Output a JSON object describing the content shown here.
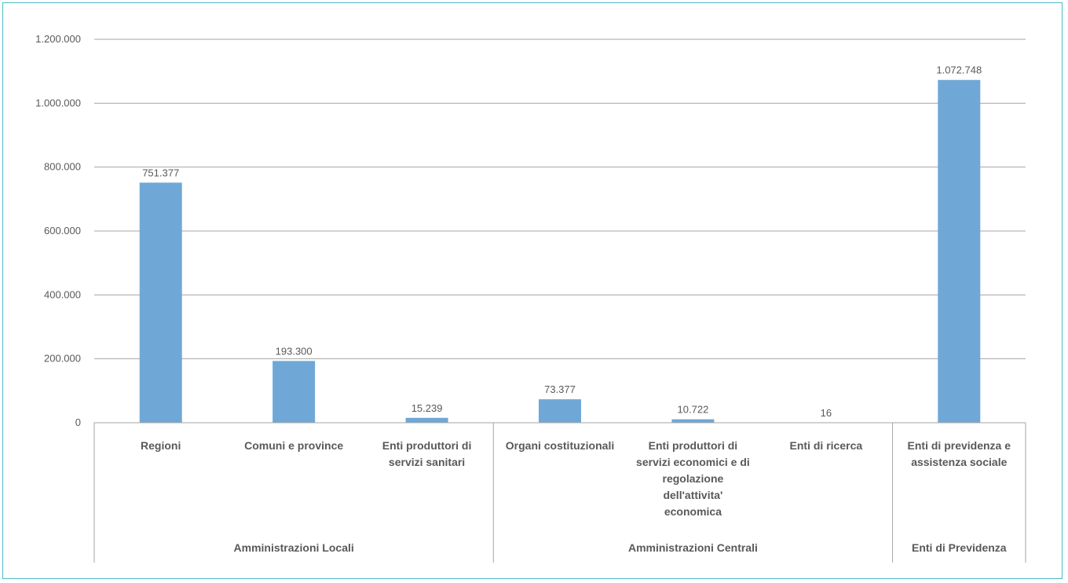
{
  "chart_data": {
    "type": "bar",
    "title": "",
    "xlabel": "",
    "ylabel": "",
    "ylim": [
      0,
      1200000
    ],
    "yticks": [
      0,
      200000,
      400000,
      600000,
      800000,
      1000000,
      1200000
    ],
    "ytick_labels": [
      "0",
      "200.000",
      "400.000",
      "600.000",
      "800.000",
      "1.000.000",
      "1.200.000"
    ],
    "grid": true,
    "legend": "none",
    "bar_color": "#6fa8d6",
    "categories": [
      "Regioni",
      "Comuni e province",
      "Enti produttori di servizi sanitari",
      "Organi costituzionali",
      "Enti produttori di servizi economici e di regolazione dell'attivita' economica",
      "Enti di ricerca",
      "Enti di previdenza e assistenza sociale"
    ],
    "category_lines": [
      [
        "Regioni"
      ],
      [
        "Comuni e province"
      ],
      [
        "Enti produttori di",
        "servizi sanitari"
      ],
      [
        "Organi costituzionali"
      ],
      [
        "Enti produttori di",
        "servizi economici e di",
        "regolazione",
        "dell'attivita'",
        "economica"
      ],
      [
        "Enti di ricerca"
      ],
      [
        "Enti di previdenza e",
        "assistenza sociale"
      ]
    ],
    "values": [
      751377,
      193300,
      15239,
      73377,
      10722,
      16,
      1072748
    ],
    "value_labels": [
      "751.377",
      "193.300",
      "15.239",
      "73.377",
      "10.722",
      "16",
      "1.072.748"
    ],
    "groups": [
      {
        "label": "Amministrazioni Locali",
        "span": 3
      },
      {
        "label": "Amministrazioni Centrali",
        "span": 3
      },
      {
        "label": "Enti di Previdenza",
        "span": 1
      }
    ]
  }
}
